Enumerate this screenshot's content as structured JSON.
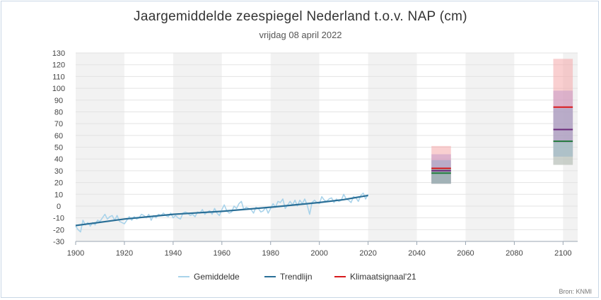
{
  "chart_data": {
    "type": "line",
    "title": "Jaargemiddelde zeespiegel Nederland t.o.v. NAP (cm)",
    "subtitle": "vrijdag 08 april 2022",
    "source": "Bron: KNMI",
    "xlim": [
      1900,
      2106
    ],
    "ylim": [
      -30,
      130
    ],
    "x_ticks": [
      1900,
      1920,
      1940,
      1960,
      1980,
      2000,
      2020,
      2040,
      2060,
      2080,
      2100
    ],
    "y_ticks": [
      -30,
      -20,
      -10,
      0,
      10,
      20,
      30,
      40,
      50,
      60,
      70,
      80,
      90,
      100,
      110,
      120,
      130
    ],
    "grid": true,
    "legend_position": "bottom",
    "colors": {
      "gemiddelde": "#a9d3ea",
      "trendlijn": "#2a6f97",
      "klimaatsignaal": "#d7191c",
      "band_light": "#dcdcdc",
      "band_dark": "#f2f2f2"
    },
    "series": [
      {
        "name": "Gemiddelde",
        "x": [
          1900,
          1901,
          1902,
          1903,
          1904,
          1905,
          1906,
          1907,
          1908,
          1909,
          1910,
          1911,
          1912,
          1913,
          1914,
          1915,
          1916,
          1917,
          1918,
          1919,
          1920,
          1921,
          1922,
          1923,
          1924,
          1925,
          1926,
          1927,
          1928,
          1929,
          1930,
          1931,
          1932,
          1933,
          1934,
          1935,
          1936,
          1937,
          1938,
          1939,
          1940,
          1941,
          1942,
          1943,
          1944,
          1945,
          1946,
          1947,
          1948,
          1949,
          1950,
          1951,
          1952,
          1953,
          1954,
          1955,
          1956,
          1957,
          1958,
          1959,
          1960,
          1961,
          1962,
          1963,
          1964,
          1965,
          1966,
          1967,
          1968,
          1969,
          1970,
          1971,
          1972,
          1973,
          1974,
          1975,
          1976,
          1977,
          1978,
          1979,
          1980,
          1981,
          1982,
          1983,
          1984,
          1985,
          1986,
          1987,
          1988,
          1989,
          1990,
          1991,
          1992,
          1993,
          1994,
          1995,
          1996,
          1997,
          1998,
          1999,
          2000,
          2001,
          2002,
          2003,
          2004,
          2005,
          2006,
          2007,
          2008,
          2009,
          2010,
          2011,
          2012,
          2013,
          2014,
          2015,
          2016,
          2017,
          2018,
          2019,
          2020
        ],
        "values": [
          -17,
          -20,
          -22,
          -12,
          -16,
          -14,
          -17,
          -14,
          -16,
          -12,
          -13,
          -10,
          -7,
          -11,
          -9,
          -8,
          -12,
          -8,
          -13,
          -14,
          -15,
          -12,
          -9,
          -12,
          -9,
          -11,
          -10,
          -7,
          -8,
          -10,
          -7,
          -12,
          -8,
          -10,
          -7,
          -8,
          -6,
          -8,
          -9,
          -6,
          -10,
          -8,
          -10,
          -11,
          -6,
          -5,
          -6,
          -8,
          -7,
          -9,
          -5,
          -6,
          -3,
          -7,
          -5,
          -4,
          -7,
          -2,
          -6,
          -8,
          -3,
          1,
          -4,
          -6,
          -5,
          0,
          -2,
          2,
          4,
          -3,
          -1,
          -2,
          -3,
          -6,
          -1,
          -2,
          -5,
          -4,
          -1,
          -6,
          -2,
          2,
          -1,
          4,
          3,
          6,
          -2,
          1,
          4,
          1,
          5,
          0,
          5,
          2,
          6,
          1,
          -7,
          3,
          5,
          3,
          2,
          8,
          5,
          4,
          6,
          7,
          3,
          6,
          4,
          5,
          10,
          6,
          5,
          3,
          8,
          7,
          4,
          9,
          11,
          6,
          10
        ]
      },
      {
        "name": "Trendlijn",
        "x": [
          1900,
          1920,
          1940,
          1960,
          1980,
          2000,
          2010,
          2020
        ],
        "values": [
          -16.5,
          -11,
          -7,
          -4.5,
          -1,
          3,
          5.5,
          9
        ]
      }
    ],
    "klimaatsignaal21": {
      "name": "Klimaatsignaal'21",
      "scenarios": [
        {
          "year": 2050,
          "bands": [
            {
              "low": 19,
              "high": 51,
              "color": "#f4a7aa"
            },
            {
              "low": 19,
              "high": 44,
              "color": "#c69bc8"
            },
            {
              "low": 19,
              "high": 39,
              "color": "#9aa8c6"
            },
            {
              "low": 19,
              "high": 32,
              "color": "#8fb8a8"
            }
          ],
          "lines": [
            {
              "value": 32,
              "color": "#d7191c"
            },
            {
              "value": 30,
              "color": "#6b2b7a"
            },
            {
              "value": 28,
              "color": "#1f7a3a"
            }
          ]
        },
        {
          "year": 2100,
          "bands": [
            {
              "low": 35,
              "high": 125,
              "color": "#f4a7aa"
            },
            {
              "low": 42,
              "high": 98,
              "color": "#c69bc8"
            },
            {
              "low": 42,
              "high": 83,
              "color": "#9aa8c6"
            },
            {
              "low": 35,
              "high": 54,
              "color": "#a5d3c8"
            }
          ],
          "lines": [
            {
              "value": 84,
              "color": "#d7191c"
            },
            {
              "value": 65,
              "color": "#6b2b7a"
            },
            {
              "value": 55,
              "color": "#1f7a3a"
            }
          ]
        }
      ]
    },
    "legend": [
      {
        "label": "Gemiddelde",
        "color": "#a9d3ea"
      },
      {
        "label": "Trendlijn",
        "color": "#2a6f97"
      },
      {
        "label": "Klimaatsignaal'21",
        "color": "#d7191c"
      }
    ]
  }
}
